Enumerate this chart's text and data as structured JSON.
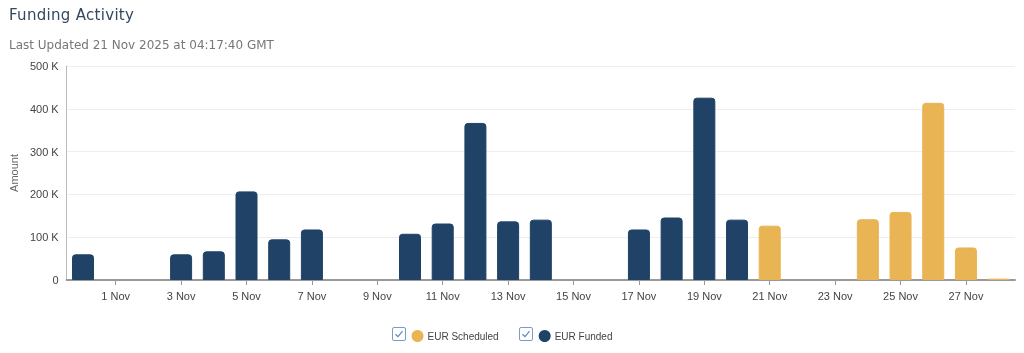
{
  "chart_data": {
    "type": "bar",
    "title": "Funding Activity",
    "subtitle": "Last Updated 21 Nov 2025 at 04:17:40 GMT",
    "ylabel": "Amount",
    "categories": [
      null,
      "1 Nov",
      null,
      "3 Nov",
      null,
      "5 Nov",
      null,
      "7 Nov",
      null,
      "9 Nov",
      null,
      "11 Nov",
      null,
      "13 Nov",
      null,
      "15 Nov",
      null,
      "17 Nov",
      null,
      "19 Nov",
      null,
      "21 Nov",
      null,
      "23 Nov",
      null,
      "25 Nov",
      null,
      "27 Nov",
      null
    ],
    "series": [
      {
        "name": "EUR Scheduled",
        "color": "#e9b454",
        "values": [
          null,
          null,
          null,
          null,
          null,
          null,
          null,
          null,
          null,
          null,
          null,
          null,
          null,
          null,
          null,
          null,
          null,
          null,
          null,
          null,
          null,
          127,
          null,
          null,
          142,
          159,
          414,
          76,
          3
        ]
      },
      {
        "name": "EUR Funded",
        "color": "#1f4266",
        "values": [
          60,
          null,
          null,
          60,
          67,
          207,
          95,
          118,
          null,
          null,
          108,
          132,
          367,
          137,
          141,
          null,
          null,
          118,
          146,
          426,
          141,
          null,
          null,
          null,
          null,
          null,
          null,
          null,
          null
        ]
      }
    ],
    "stacked": true,
    "ylim": [
      0,
      500
    ],
    "yticks": [
      0,
      {
        "value": 100,
        "label": "100 K"
      },
      {
        "value": 200,
        "label": "200 K"
      },
      {
        "value": 300,
        "label": "300 K"
      },
      {
        "value": 400,
        "label": "400 K"
      },
      {
        "value": 500,
        "label": "500 K"
      }
    ],
    "grid": "y",
    "legend": "bottom"
  }
}
